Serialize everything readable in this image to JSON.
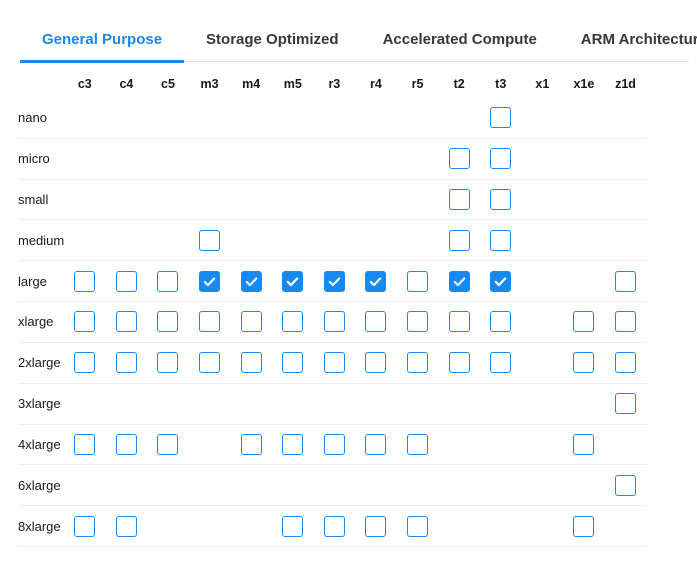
{
  "colors": {
    "accent": "#1789f2",
    "text": "#16191f",
    "inactive_tab": "#37383c",
    "row_separator": "#efefef",
    "tab_separator": "#e2e2e2",
    "check_mark": "#ffffff"
  },
  "tabs": [
    {
      "label": "General Purpose",
      "active": true
    },
    {
      "label": "Storage Optimized",
      "active": false
    },
    {
      "label": "Accelerated Compute",
      "active": false
    },
    {
      "label": "ARM Architecture",
      "active": false
    }
  ],
  "matrix": {
    "columns": [
      "c3",
      "c4",
      "c5",
      "m3",
      "m4",
      "m5",
      "r3",
      "r4",
      "r5",
      "t2",
      "t3",
      "x1",
      "x1e",
      "z1d"
    ],
    "rows": [
      {
        "label": "nano",
        "available": [
          "t3"
        ],
        "checked": []
      },
      {
        "label": "micro",
        "available": [
          "t2",
          "t3"
        ],
        "checked": []
      },
      {
        "label": "small",
        "available": [
          "t2",
          "t3"
        ],
        "checked": []
      },
      {
        "label": "medium",
        "available": [
          "m3",
          "t2",
          "t3"
        ],
        "checked": []
      },
      {
        "label": "large",
        "available": [
          "c3",
          "c4",
          "c5",
          "m3",
          "m4",
          "m5",
          "r3",
          "r4",
          "r5",
          "t2",
          "t3",
          "z1d"
        ],
        "checked": [
          "m3",
          "m4",
          "m5",
          "r3",
          "r4",
          "t2",
          "t3"
        ]
      },
      {
        "label": "xlarge",
        "available": [
          "c3",
          "c4",
          "c5",
          "m3",
          "m4",
          "m5",
          "r3",
          "r4",
          "r5",
          "t2",
          "t3",
          "x1e",
          "z1d"
        ],
        "checked": []
      },
      {
        "label": "2xlarge",
        "available": [
          "c3",
          "c4",
          "c5",
          "m3",
          "m4",
          "m5",
          "r3",
          "r4",
          "r5",
          "t2",
          "t3",
          "x1e",
          "z1d"
        ],
        "checked": []
      },
      {
        "label": "3xlarge",
        "available": [
          "z1d"
        ],
        "checked": []
      },
      {
        "label": "4xlarge",
        "available": [
          "c3",
          "c4",
          "c5",
          "m4",
          "m5",
          "r3",
          "r4",
          "r5",
          "x1e"
        ],
        "checked": []
      },
      {
        "label": "6xlarge",
        "available": [
          "z1d"
        ],
        "checked": []
      },
      {
        "label": "8xlarge",
        "available": [
          "c3",
          "c4",
          "m5",
          "r3",
          "r4",
          "r5",
          "x1e"
        ],
        "checked": []
      }
    ]
  }
}
